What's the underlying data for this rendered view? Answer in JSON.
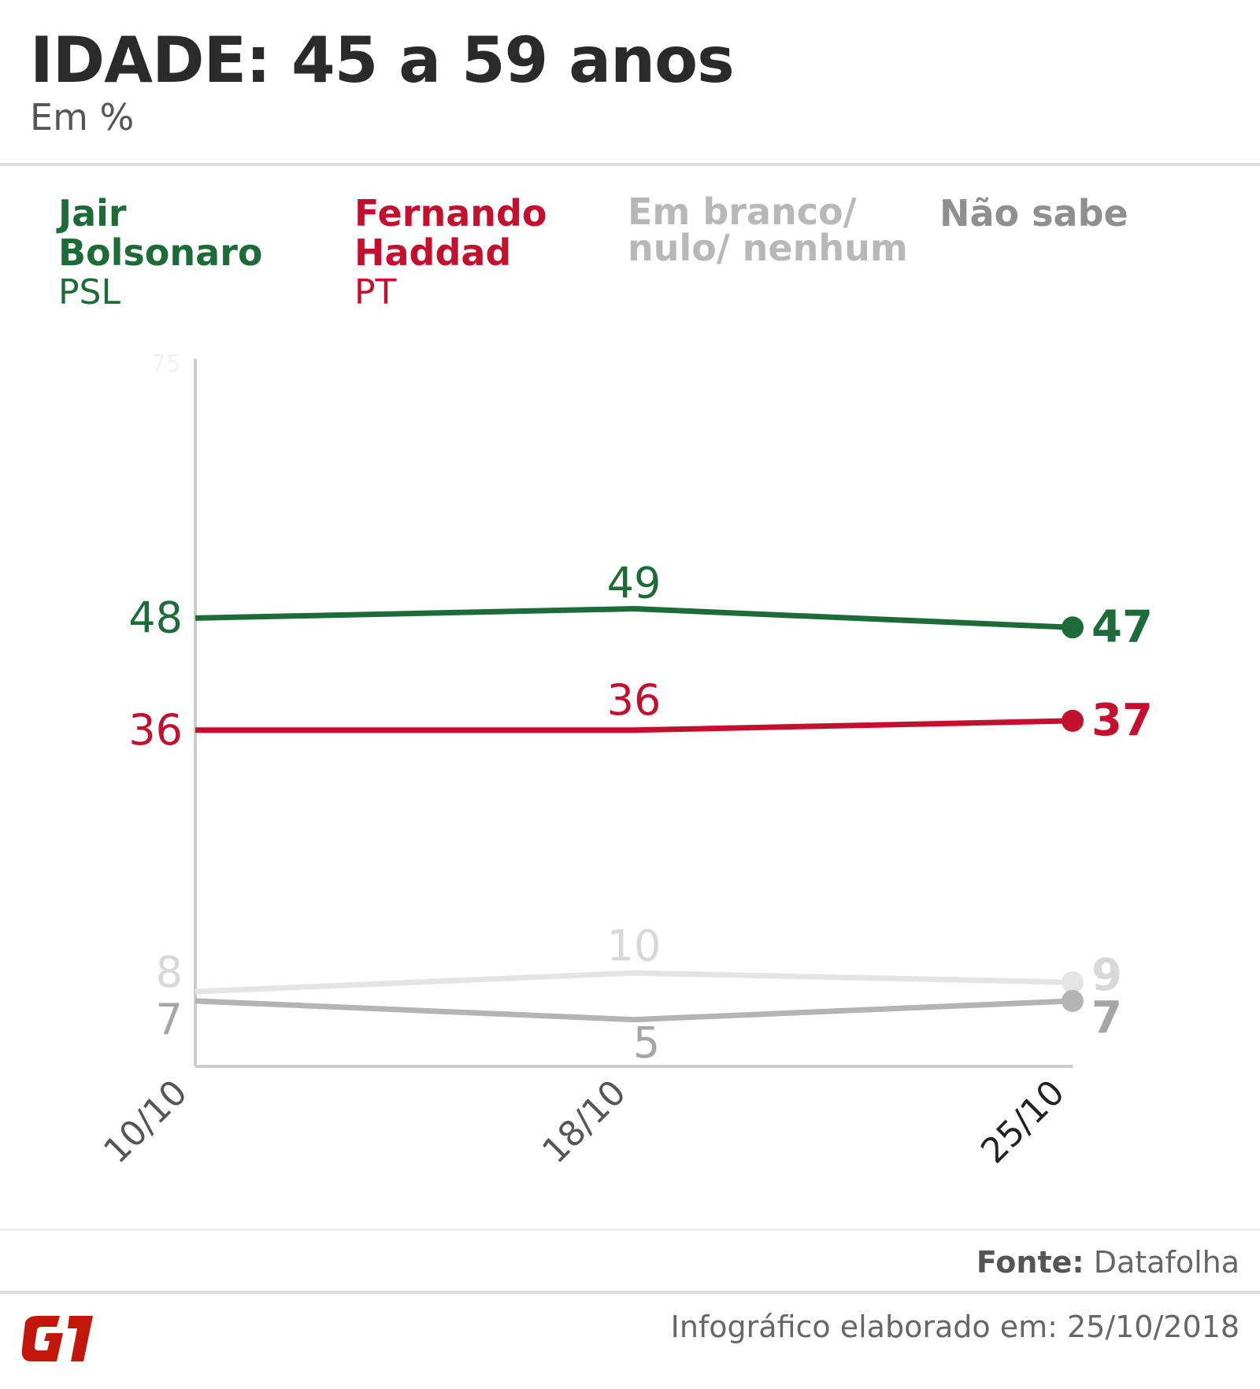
{
  "header": {
    "title": "IDADE: 45 a 59 anos",
    "subtitle": "Em %"
  },
  "legend": [
    {
      "name": "Jair\nBolsonaro",
      "party": "PSL",
      "color": "#1e6b3a"
    },
    {
      "name": "Fernando\nHaddad",
      "party": "PT",
      "color": "#c4102f"
    },
    {
      "name": "Em branco/\nnulo/ nenhum",
      "party": "",
      "color": "#b8b8b8"
    },
    {
      "name": "Não sabe",
      "party": "",
      "color": "#8f8f8f"
    }
  ],
  "chart_data": {
    "type": "line",
    "x": [
      "10/10",
      "18/10",
      "25/10"
    ],
    "ylim": [
      0,
      75
    ],
    "yaxis_top_label": "75",
    "series": [
      {
        "name": "Jair Bolsonaro",
        "values": [
          48,
          49,
          47
        ],
        "color": "#1e6b3a",
        "line_color": "#1e6b3a"
      },
      {
        "name": "Fernando Haddad",
        "values": [
          36,
          36,
          37
        ],
        "color": "#c4102f",
        "line_color": "#c4102f"
      },
      {
        "name": "Em branco/ nulo/ nenhum",
        "values": [
          8,
          10,
          9
        ],
        "color": "#d8d8d8",
        "line_color": "#e4e4e4"
      },
      {
        "name": "Não sabe",
        "values": [
          7,
          5,
          7
        ],
        "color": "#a6a6a6",
        "line_color": "#b4b4b4"
      }
    ],
    "axis_color": "#cccccc",
    "tick_label_color": "#555555",
    "last_tick_label_color": "#222222"
  },
  "footer": {
    "source_label": "Fonte:",
    "source_value": "Datafolha",
    "note": "Infográfico elaborado em: 25/10/2018",
    "logo_text": "G1",
    "logo_color": "#c4170c"
  }
}
